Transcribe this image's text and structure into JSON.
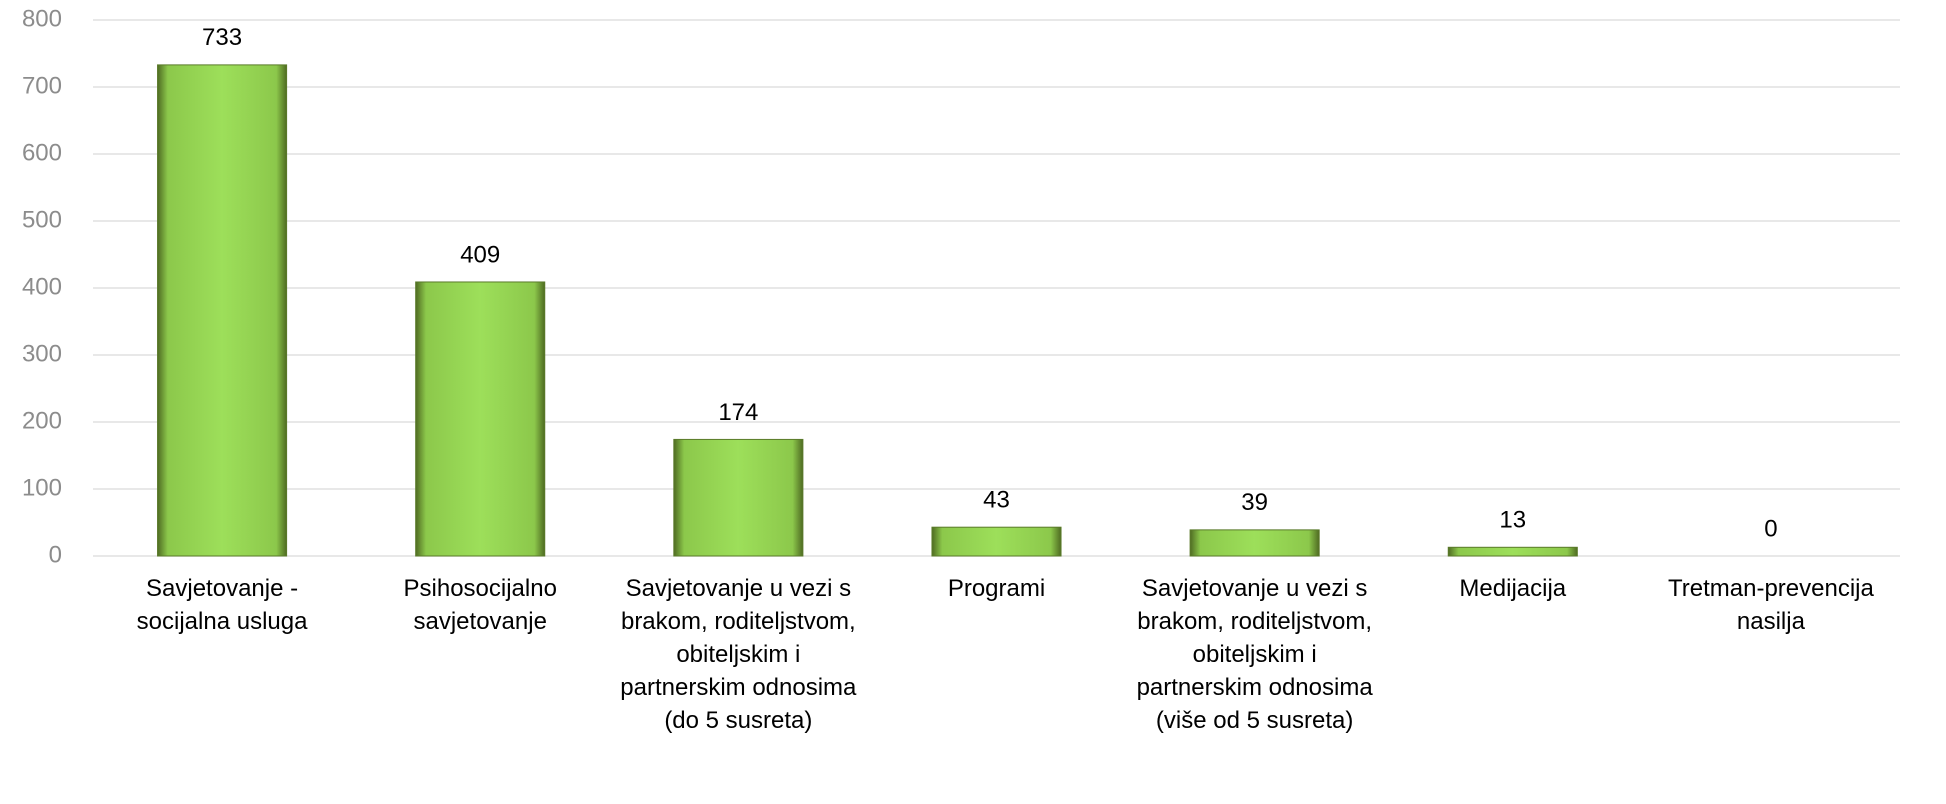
{
  "chart_data": {
    "type": "bar",
    "categories": [
      "Savjetovanje - socijalna usluga",
      "Psihosocijalno savjetovanje",
      "Savjetovanje u vezi s brakom, roditeljstvom, obiteljskim i partnerskim odnosima (do 5 susreta)",
      "Programi",
      "Savjetovanje u vezi s brakom, roditeljstvom, obiteljskim i partnerskim odnosima (više od 5 susreta)",
      "Medijacija",
      "Tretman-prevencija nasilja"
    ],
    "values": [
      733,
      409,
      174,
      43,
      39,
      13,
      0
    ],
    "color": "#92d050",
    "ylim": [
      0,
      800
    ],
    "yticks": [
      0,
      100,
      200,
      300,
      400,
      500,
      600,
      700,
      800
    ],
    "grid": true
  }
}
